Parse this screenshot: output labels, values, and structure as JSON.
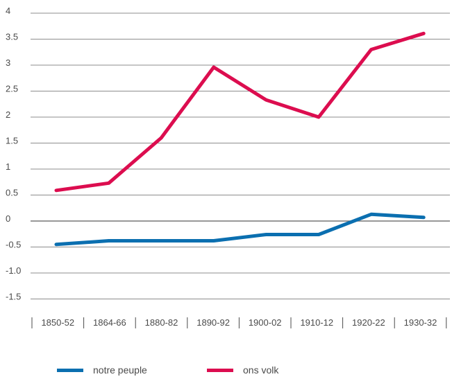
{
  "chart_data": {
    "type": "line",
    "title": "",
    "xlabel": "",
    "ylabel": "",
    "categories": [
      "1850-52",
      "1864-66",
      "1880-82",
      "1890-92",
      "1900-02",
      "1910-12",
      "1920-22",
      "1930-32"
    ],
    "y_ticks": [
      "4",
      "3.5",
      "3",
      "2.5",
      "2",
      "1.5",
      "1",
      "0.5",
      "0",
      "-0.5",
      "-1.0",
      "-1.5"
    ],
    "ylim": [
      -1.5,
      4
    ],
    "grid": "horizontal",
    "legend_position": "bottom",
    "series": [
      {
        "name": "notre peuple",
        "color": "#0b6fb0",
        "values": [
          -0.45,
          -0.38,
          -0.38,
          -0.38,
          -0.26,
          -0.26,
          0.13,
          0.07
        ]
      },
      {
        "name": "ons volk",
        "color": "#dc0d4f",
        "values": [
          0.59,
          0.73,
          1.6,
          2.96,
          2.33,
          2.0,
          3.3,
          3.61
        ]
      }
    ]
  }
}
